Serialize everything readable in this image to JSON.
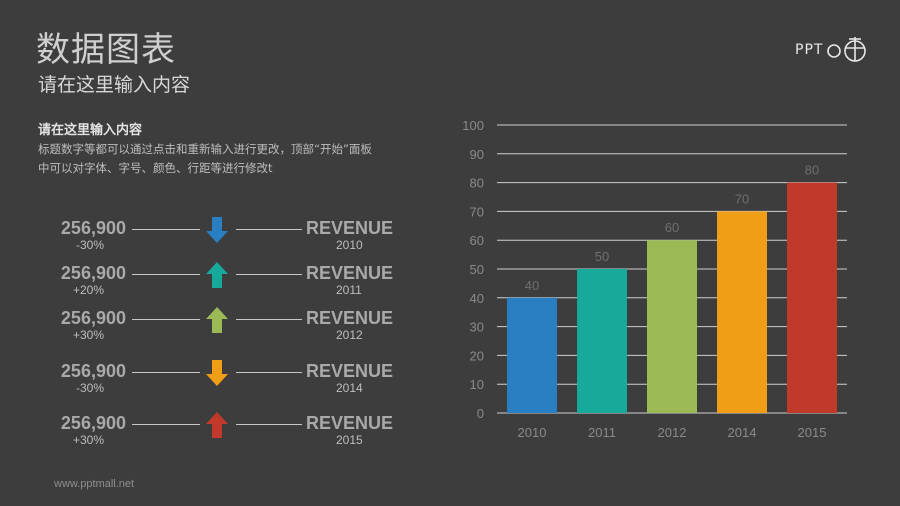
{
  "title": "数据图表",
  "subtitle": "请在这里输入内容",
  "logo_text": "PPT",
  "section": {
    "heading": "请在这里输入内容",
    "description": "标题数字等都可以通过点击和重新输入进行更改，顶部“开始”面板中可以对字体、字号、颜色、行距等进行修改t"
  },
  "rows": [
    {
      "amount": "256,900",
      "change": "-30%",
      "label": "REVENUE",
      "year": "2010",
      "direction": "down",
      "color": "#2a7fc3"
    },
    {
      "amount": "256,900",
      "change": "+20%",
      "label": "REVENUE",
      "year": "2011",
      "direction": "up",
      "color": "#17a99a"
    },
    {
      "amount": "256,900",
      "change": "+30%",
      "label": "REVENUE",
      "year": "2012",
      "direction": "up",
      "color": "#9bba55"
    },
    {
      "amount": "256,900",
      "change": "-30%",
      "label": "REVENUE",
      "year": "2014",
      "direction": "down",
      "color": "#f19e17"
    },
    {
      "amount": "256,900",
      "change": "+30%",
      "label": "REVENUE",
      "year": "2015",
      "direction": "up",
      "color": "#c0392b"
    }
  ],
  "footer": "www.pptmall.net",
  "chart_data": {
    "type": "bar",
    "categories": [
      "2010",
      "2011",
      "2012",
      "2014",
      "2015"
    ],
    "values": [
      40,
      50,
      60,
      70,
      80
    ],
    "colors": [
      "#2a7fc3",
      "#17a99a",
      "#9bba55",
      "#f19e17",
      "#c0392b"
    ],
    "ylim": [
      0,
      100
    ],
    "yticks": [
      0,
      10,
      20,
      30,
      40,
      50,
      60,
      70,
      80,
      90,
      100
    ],
    "grid": true,
    "data_labels": true,
    "title": "",
    "xlabel": "",
    "ylabel": ""
  }
}
